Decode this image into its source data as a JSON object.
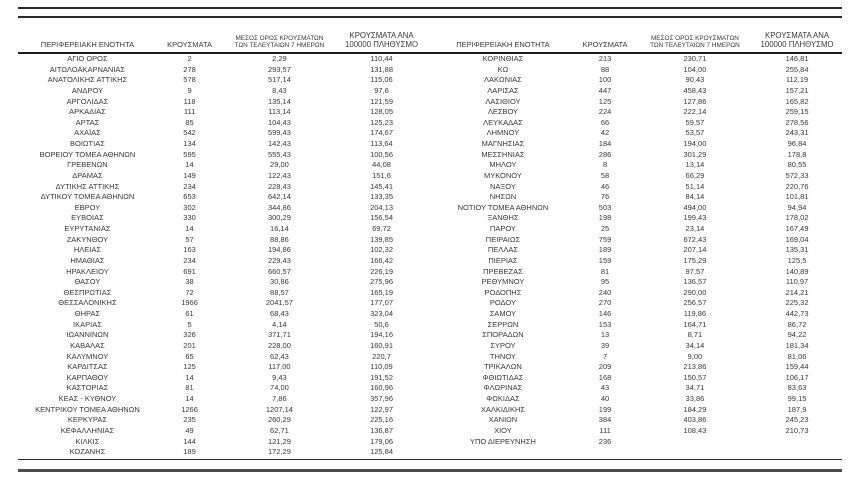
{
  "page": {
    "background": "#ffffff",
    "text_color": "#383838",
    "rule_color": "#2a2a2a"
  },
  "table": {
    "columns": {
      "region": "ΠΕΡΙΦΕΡΕΙΑΚΗ ΕΝΟΤΗΤΑ",
      "cases": "ΚΡΟΥΣΜΑΤΑ",
      "avg7": "ΜΕΣΟΣ ΟΡΟΣ ΚΡΟΥΣΜΑΤΩΝ ΤΩΝ ΤΕΛΕΥΤΑΙΩΝ 7 ΗΜΕΡΩΝ",
      "per100k": "ΚΡΟΥΣΜΑΤΑ ΑΝΑ 100000 ΠΛΗΘΥΣΜΟ"
    },
    "left_rows": [
      {
        "region": "ΑΓΙΟ ΟΡΟΣ",
        "cases": "2",
        "avg7": "2,29",
        "per100k": "110,44"
      },
      {
        "region": "ΑΙΤΩΛΟΑΚΑΡΝΑΝΙΑΣ",
        "cases": "278",
        "avg7": "293,57",
        "per100k": "131,88"
      },
      {
        "region": "ΑΝΑΤΟΛΙΚΗΣ ΑΤΤΙΚΗΣ",
        "cases": "578",
        "avg7": "517,14",
        "per100k": "115,06"
      },
      {
        "region": "ΑΝΔΡΟΥ",
        "cases": "9",
        "avg7": "8,43",
        "per100k": "97,6"
      },
      {
        "region": "ΑΡΓΟΛΙΔΑΣ",
        "cases": "118",
        "avg7": "135,14",
        "per100k": "121,59"
      },
      {
        "region": "ΑΡΚΑΔΙΑΣ",
        "cases": "111",
        "avg7": "113,14",
        "per100k": "128,05"
      },
      {
        "region": "ΑΡΤΑΣ",
        "cases": "85",
        "avg7": "104,43",
        "per100k": "125,23"
      },
      {
        "region": "ΑΧΑΪΑΣ",
        "cases": "542",
        "avg7": "599,43",
        "per100k": "174,67"
      },
      {
        "region": "ΒΟΙΩΤΙΑΣ",
        "cases": "134",
        "avg7": "142,43",
        "per100k": "113,64"
      },
      {
        "region": "ΒΟΡΕΙΟΥ ΤΟΜΕΑ ΑΘΗΝΩΝ",
        "cases": "595",
        "avg7": "555,43",
        "per100k": "100,56"
      },
      {
        "region": "ΓΡΕΒΕΝΩΝ",
        "cases": "14",
        "avg7": "29,00",
        "per100k": "44,08"
      },
      {
        "region": "ΔΡΑΜΑΣ",
        "cases": "149",
        "avg7": "122,43",
        "per100k": "151,6"
      },
      {
        "region": "ΔΥΤΙΚΗΣ ΑΤΤΙΚΗΣ",
        "cases": "234",
        "avg7": "228,43",
        "per100k": "145,41"
      },
      {
        "region": "ΔΥΤΙΚΟΥ ΤΟΜΕΑ ΑΘΗΝΩΝ",
        "cases": "653",
        "avg7": "642,14",
        "per100k": "133,35"
      },
      {
        "region": "ΕΒΡΟΥ",
        "cases": "302",
        "avg7": "344,86",
        "per100k": "204,13"
      },
      {
        "region": "ΕΥΒΟΙΑΣ",
        "cases": "330",
        "avg7": "300,29",
        "per100k": "156,54"
      },
      {
        "region": "ΕΥΡΥΤΑΝΙΑΣ",
        "cases": "14",
        "avg7": "16,14",
        "per100k": "69,72"
      },
      {
        "region": "ΖΑΚΥΝΘΟΥ",
        "cases": "57",
        "avg7": "88,86",
        "per100k": "139,85"
      },
      {
        "region": "ΗΛΕΙΑΣ",
        "cases": "163",
        "avg7": "194,86",
        "per100k": "102,32"
      },
      {
        "region": "ΗΜΑΘΙΑΣ",
        "cases": "234",
        "avg7": "229,43",
        "per100k": "166,42"
      },
      {
        "region": "ΗΡΑΚΛΕΙΟΥ",
        "cases": "691",
        "avg7": "660,57",
        "per100k": "226,19"
      },
      {
        "region": "ΘΑΣΟΥ",
        "cases": "38",
        "avg7": "30,86",
        "per100k": "275,96"
      },
      {
        "region": "ΘΕΣΠΡΩΤΙΑΣ",
        "cases": "72",
        "avg7": "88,57",
        "per100k": "165,19"
      },
      {
        "region": "ΘΕΣΣΑΛΟΝΙΚΗΣ",
        "cases": "1966",
        "avg7": "2041,57",
        "per100k": "177,07"
      },
      {
        "region": "ΘΗΡΑΣ",
        "cases": "61",
        "avg7": "68,43",
        "per100k": "323,04"
      },
      {
        "region": "ΙΚΑΡΙΑΣ",
        "cases": "5",
        "avg7": "4,14",
        "per100k": "50,6"
      },
      {
        "region": "ΙΩΑΝΝΙΝΩΝ",
        "cases": "326",
        "avg7": "371,71",
        "per100k": "194,16"
      },
      {
        "region": "ΚΑΒΑΛΑΣ",
        "cases": "201",
        "avg7": "228,00",
        "per100k": "160,91"
      },
      {
        "region": "ΚΑΛΥΜΝΟΥ",
        "cases": "65",
        "avg7": "62,43",
        "per100k": "220,7"
      },
      {
        "region": "ΚΑΡΔΙΤΣΑΣ",
        "cases": "125",
        "avg7": "117,00",
        "per100k": "110,09"
      },
      {
        "region": "ΚΑΡΠΑΘΟΥ",
        "cases": "14",
        "avg7": "9,43",
        "per100k": "191,52"
      },
      {
        "region": "ΚΑΣΤΟΡΙΑΣ",
        "cases": "81",
        "avg7": "74,00",
        "per100k": "160,96"
      },
      {
        "region": "ΚΕΑΣ - ΚΥΘΝΟΥ",
        "cases": "14",
        "avg7": "7,86",
        "per100k": "357,96"
      },
      {
        "region": "ΚΕΝΤΡΙΚΟΥ ΤΟΜΕΑ ΑΘΗΝΩΝ",
        "cases": "1266",
        "avg7": "1207,14",
        "per100k": "122,97"
      },
      {
        "region": "ΚΕΡΚΥΡΑΣ",
        "cases": "235",
        "avg7": "260,29",
        "per100k": "225,16"
      },
      {
        "region": "ΚΕΦΑΛΛΗΝΙΑΣ",
        "cases": "49",
        "avg7": "62,71",
        "per100k": "136,87"
      },
      {
        "region": "ΚΙΛΚΙΣ",
        "cases": "144",
        "avg7": "121,29",
        "per100k": "179,06"
      },
      {
        "region": "ΚΟΖΑΝΗΣ",
        "cases": "189",
        "avg7": "172,29",
        "per100k": "125,84"
      }
    ],
    "right_rows": [
      {
        "region": "ΚΟΡΙΝΘΙΑΣ",
        "cases": "213",
        "avg7": "230,71",
        "per100k": "146,81"
      },
      {
        "region": "ΚΩ",
        "cases": "88",
        "avg7": "104,00",
        "per100k": "255,84"
      },
      {
        "region": "ΛΑΚΩΝΙΑΣ",
        "cases": "100",
        "avg7": "90,43",
        "per100k": "112,19"
      },
      {
        "region": "ΛΑΡΙΣΑΣ",
        "cases": "447",
        "avg7": "458,43",
        "per100k": "157,21"
      },
      {
        "region": "ΛΑΣΙΘΙΟΥ",
        "cases": "125",
        "avg7": "127,86",
        "per100k": "165,82"
      },
      {
        "region": "ΛΕΣΒΟΥ",
        "cases": "224",
        "avg7": "222,14",
        "per100k": "259,15"
      },
      {
        "region": "ΛΕΥΚΑΔΑΣ",
        "cases": "66",
        "avg7": "59,57",
        "per100k": "278,56"
      },
      {
        "region": "ΛΗΜΝΟΥ",
        "cases": "42",
        "avg7": "53,57",
        "per100k": "243,31"
      },
      {
        "region": "ΜΑΓΝΗΣΙΑΣ",
        "cases": "184",
        "avg7": "194,00",
        "per100k": "96,84"
      },
      {
        "region": "ΜΕΣΣΗΝΙΑΣ",
        "cases": "286",
        "avg7": "301,29",
        "per100k": "178,8"
      },
      {
        "region": "ΜΗΛΟΥ",
        "cases": "8",
        "avg7": "13,14",
        "per100k": "80,55"
      },
      {
        "region": "ΜΥΚΟΝΟΥ",
        "cases": "58",
        "avg7": "66,29",
        "per100k": "572,33"
      },
      {
        "region": "ΝΑΞΟΥ",
        "cases": "46",
        "avg7": "51,14",
        "per100k": "220,76"
      },
      {
        "region": "ΝΗΣΩΝ",
        "cases": "76",
        "avg7": "84,14",
        "per100k": "101,81"
      },
      {
        "region": "ΝΟΤΙΟΥ ΤΟΜΕΑ ΑΘΗΝΩΝ",
        "cases": "503",
        "avg7": "494,00",
        "per100k": "94,94"
      },
      {
        "region": "ΞΑΝΘΗΣ",
        "cases": "198",
        "avg7": "199,43",
        "per100k": "178,02"
      },
      {
        "region": "ΠΑΡΟΥ",
        "cases": "25",
        "avg7": "23,14",
        "per100k": "167,49"
      },
      {
        "region": "ΠΕΙΡΑΙΩΣ",
        "cases": "759",
        "avg7": "672,43",
        "per100k": "169,04"
      },
      {
        "region": "ΠΕΛΛΑΣ",
        "cases": "189",
        "avg7": "207,14",
        "per100k": "135,31"
      },
      {
        "region": "ΠΙΕΡΙΑΣ",
        "cases": "159",
        "avg7": "175,29",
        "per100k": "125,5"
      },
      {
        "region": "ΠΡΕΒΕΖΑΣ",
        "cases": "81",
        "avg7": "97,57",
        "per100k": "140,89"
      },
      {
        "region": "ΡΕΘΥΜΝΟΥ",
        "cases": "95",
        "avg7": "136,57",
        "per100k": "110,97"
      },
      {
        "region": "ΡΟΔΟΠΗΣ",
        "cases": "240",
        "avg7": "290,00",
        "per100k": "214,21"
      },
      {
        "region": "ΡΟΔΟΥ",
        "cases": "270",
        "avg7": "256,57",
        "per100k": "225,32"
      },
      {
        "region": "ΣΑΜΟΥ",
        "cases": "146",
        "avg7": "119,86",
        "per100k": "442,73"
      },
      {
        "region": "ΣΕΡΡΩΝ",
        "cases": "153",
        "avg7": "164,71",
        "per100k": "86,72"
      },
      {
        "region": "ΣΠΟΡΑΔΩΝ",
        "cases": "13",
        "avg7": "8,71",
        "per100k": "94,22"
      },
      {
        "region": "ΣΥΡΟΥ",
        "cases": "39",
        "avg7": "34,14",
        "per100k": "181,34"
      },
      {
        "region": "ΤΗΝΟΥ",
        "cases": "7",
        "avg7": "9,00",
        "per100k": "81,06"
      },
      {
        "region": "ΤΡΙΚΑΛΩΝ",
        "cases": "209",
        "avg7": "213,86",
        "per100k": "159,44"
      },
      {
        "region": "ΦΘΙΩΤΙΔΑΣ",
        "cases": "168",
        "avg7": "150,57",
        "per100k": "106,17"
      },
      {
        "region": "ΦΛΩΡΙΝΑΣ",
        "cases": "43",
        "avg7": "34,71",
        "per100k": "83,63"
      },
      {
        "region": "ΦΩΚΙΔΑΣ",
        "cases": "40",
        "avg7": "33,86",
        "per100k": "99,15"
      },
      {
        "region": "ΧΑΛΚΙΔΙΚΗΣ",
        "cases": "199",
        "avg7": "184,29",
        "per100k": "187,9"
      },
      {
        "region": "ΧΑΝΙΩΝ",
        "cases": "384",
        "avg7": "403,86",
        "per100k": "245,23"
      },
      {
        "region": "ΧΙΟΥ",
        "cases": "111",
        "avg7": "108,43",
        "per100k": "210,73"
      },
      {
        "region": "ΥΠΟ ΔΙΕΡΕΥΝΗΣΗ",
        "cases": "236",
        "avg7": "",
        "per100k": ""
      }
    ]
  }
}
